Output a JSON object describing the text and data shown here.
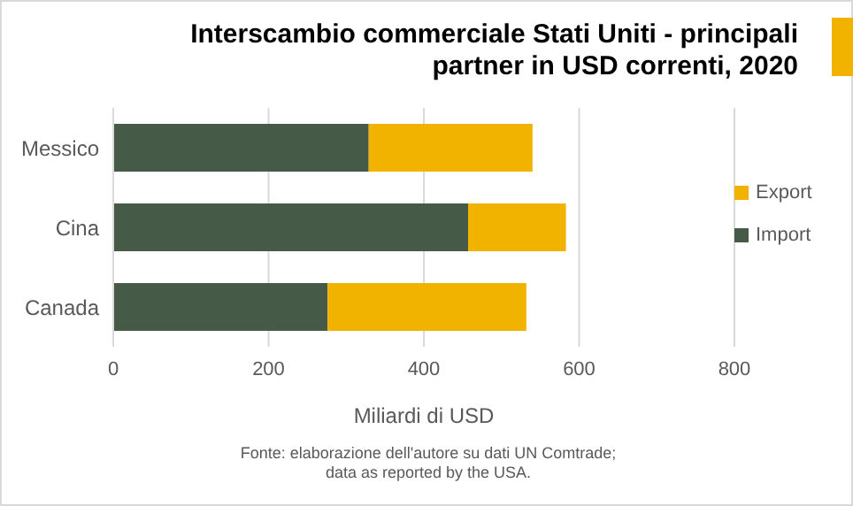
{
  "chart_data": {
    "type": "bar",
    "orientation": "horizontal",
    "stacked": true,
    "title": "Interscambio commerciale  Stati Uniti - principali partner in USD correnti, 2020",
    "xlabel": "Miliardi di USD",
    "annotations": [
      "Fonte: elaborazione  dell'autore su dati UN Comtrade; data as reported by the USA."
    ],
    "categories": [
      "Messico",
      "Cina",
      "Canada"
    ],
    "series": [
      {
        "name": "Import",
        "color": "#465b47",
        "values": [
          329,
          457,
          276
        ]
      },
      {
        "name": "Export",
        "color": "#f2b300",
        "values": [
          211,
          126,
          256
        ]
      }
    ],
    "xlim": [
      0,
      800
    ],
    "xticks": [
      0,
      200,
      400,
      600,
      800
    ],
    "grid": "x",
    "legend": "right"
  }
}
